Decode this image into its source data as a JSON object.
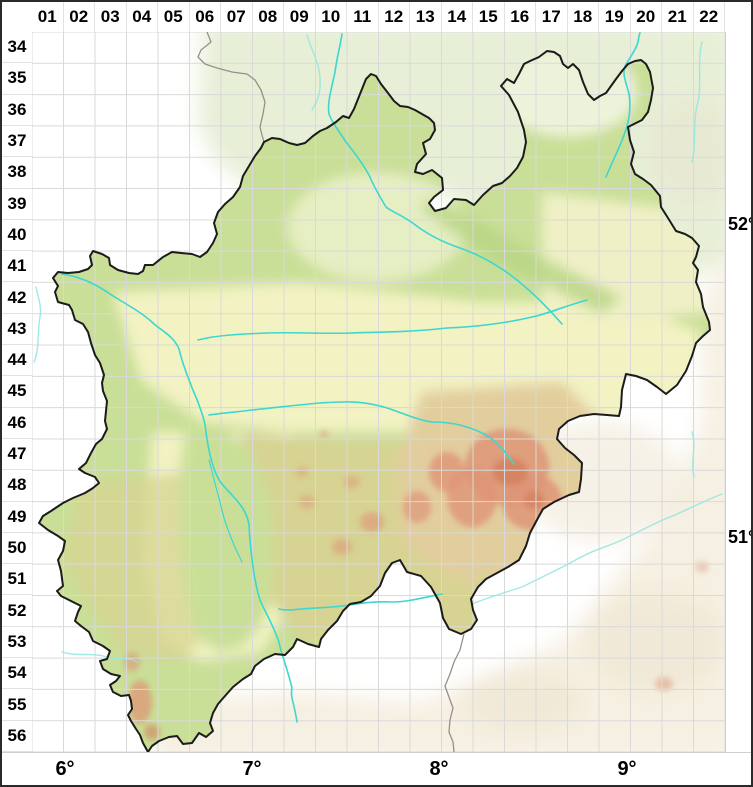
{
  "grid": {
    "column_labels": [
      "01",
      "02",
      "03",
      "04",
      "05",
      "06",
      "07",
      "08",
      "09",
      "10",
      "11",
      "12",
      "13",
      "14",
      "15",
      "16",
      "17",
      "18",
      "19",
      "20",
      "21",
      "22"
    ],
    "row_labels": [
      "34",
      "35",
      "36",
      "37",
      "38",
      "39",
      "40",
      "41",
      "42",
      "43",
      "44",
      "45",
      "46",
      "47",
      "48",
      "49",
      "50",
      "51",
      "52",
      "53",
      "54",
      "55",
      "56"
    ]
  },
  "axes": {
    "longitude_labels": [
      "6°",
      "7°",
      "8°",
      "9°"
    ],
    "latitude_labels": [
      "52°",
      "51°"
    ]
  },
  "colors": {
    "frame": "#2a2a2a",
    "strip_bg": "#ffffff",
    "strip_separator": "#cfcfcf",
    "label_color": "#000000",
    "grid_line": "#d9d9d9",
    "outside_white": "#ffffff",
    "outside_green": "#e7efd7",
    "outside_cream": "#f6f0e2",
    "outside_tan": "#ecdfc8",
    "base_green": "#c9df97",
    "pale_green": "#e9f0c8",
    "ne_pale": "#edf3da",
    "ridge_green": "#b7d482",
    "central_yellow": "#f2f2c3",
    "east_yellow": "#eff0c6",
    "upland_olive": "#d7d392",
    "upland_tan": "#e2cd9d",
    "highland_salmon": "#de9577",
    "highland_red": "#d37f5e",
    "river": "#3bd7d0",
    "river_faded": "#97e6e0",
    "nrw_border": "#1b1b1b",
    "state_border": "#979089"
  }
}
